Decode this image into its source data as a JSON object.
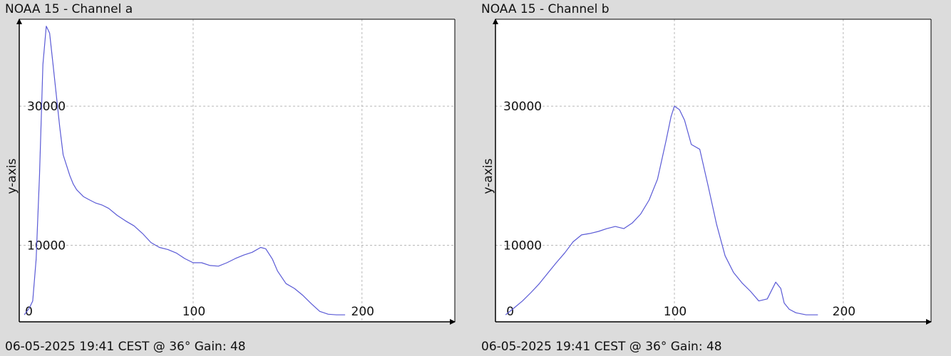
{
  "chart_data": [
    {
      "type": "line",
      "title": "NOAA 15 - Channel a",
      "footer": "06-05-2025 19:41 CEST @ 36° Gain: 48",
      "ylabel": "y-axis",
      "xlabel": "",
      "xlim": [
        -3,
        255
      ],
      "ylim": [
        -1000,
        42500
      ],
      "xticks": [
        0,
        100,
        200
      ],
      "yticks": [
        10000,
        30000
      ],
      "grid": true,
      "line_color": "#5a5ad6",
      "series": [
        {
          "x": [
            0,
            3,
            5,
            7,
            9,
            11,
            13,
            15,
            17,
            19,
            21,
            23,
            25,
            27,
            29,
            31,
            33,
            35,
            38,
            42,
            46,
            50,
            55,
            60,
            65,
            70,
            75,
            80,
            85,
            90,
            95,
            100,
            105,
            110,
            115,
            120,
            125,
            130,
            135,
            140,
            143,
            147,
            150,
            155,
            160,
            165,
            170,
            175,
            180,
            185,
            190
          ],
          "y": [
            0,
            1000,
            2000,
            8000,
            20000,
            36000,
            41500,
            40500,
            36000,
            31500,
            27000,
            23000,
            21500,
            20000,
            18800,
            18000,
            17500,
            17000,
            16600,
            16100,
            15800,
            15300,
            14300,
            13500,
            12800,
            11700,
            10400,
            9700,
            9400,
            8900,
            8100,
            7500,
            7500,
            7100,
            7000,
            7500,
            8100,
            8600,
            9000,
            9700,
            9500,
            8000,
            6300,
            4500,
            3800,
            2800,
            1600,
            500,
            100,
            0,
            0
          ]
        }
      ]
    },
    {
      "type": "line",
      "title": "NOAA 15 - Channel b",
      "footer": "06-05-2025 19:41 CEST @ 36° Gain: 48",
      "ylabel": "y-axis",
      "xlabel": "",
      "xlim": [
        -6,
        252
      ],
      "ylim": [
        -1000,
        42500
      ],
      "xticks": [
        0,
        100,
        200
      ],
      "yticks": [
        10000,
        30000
      ],
      "grid": true,
      "line_color": "#5a5ad6",
      "series": [
        {
          "x": [
            0,
            5,
            10,
            15,
            20,
            25,
            30,
            35,
            40,
            45,
            50,
            55,
            60,
            65,
            70,
            75,
            80,
            85,
            90,
            95,
            98,
            100,
            103,
            106,
            110,
            115,
            120,
            125,
            130,
            135,
            140,
            145,
            150,
            155,
            160,
            163,
            165,
            168,
            172,
            178,
            185
          ],
          "y": [
            0,
            1000,
            2000,
            3200,
            4500,
            6000,
            7500,
            8900,
            10500,
            11500,
            11700,
            12000,
            12400,
            12700,
            12400,
            13200,
            14500,
            16500,
            19500,
            25000,
            28500,
            30000,
            29500,
            28000,
            24500,
            23800,
            18500,
            13000,
            8500,
            6100,
            4600,
            3400,
            2000,
            2300,
            4700,
            3800,
            1700,
            800,
            300,
            0,
            0
          ]
        }
      ]
    }
  ]
}
